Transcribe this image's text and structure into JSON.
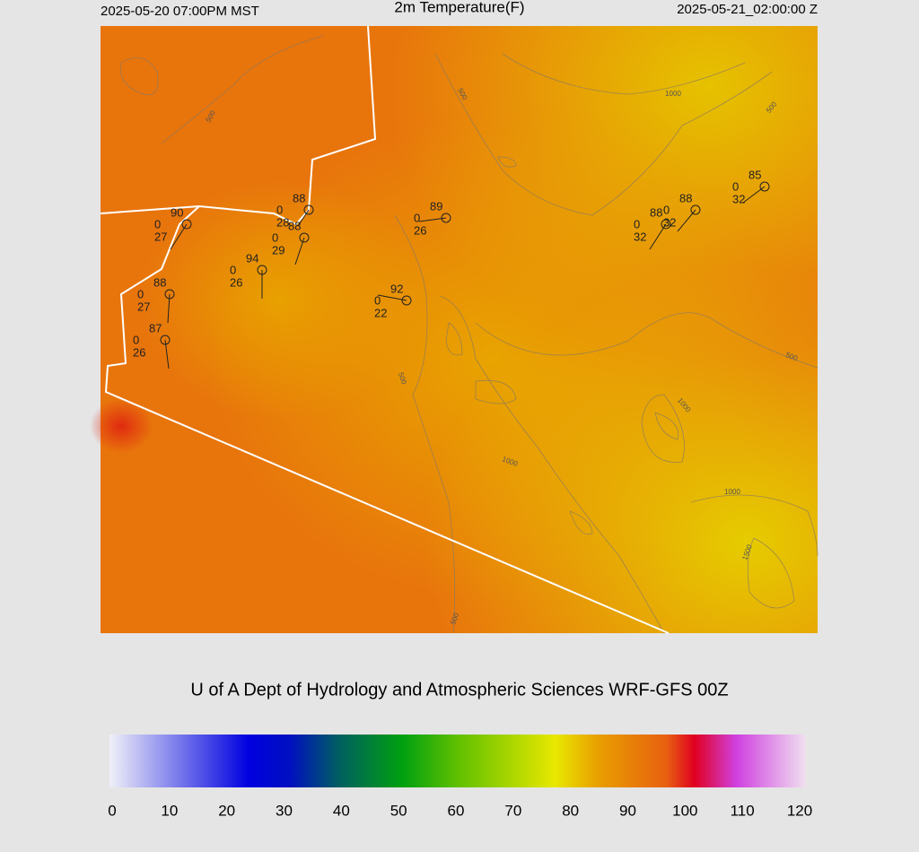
{
  "header": {
    "left": "2025-05-20 07:00PM MST",
    "title": "2m Temperature(F)",
    "right": "2025-05-21_02:00:00 Z"
  },
  "stations": [
    {
      "temp": 90,
      "wind": 0,
      "dew": 27
    },
    {
      "temp": 88,
      "wind": 0,
      "dew": 28
    },
    {
      "temp": 88,
      "wind": 0,
      "dew": 29
    },
    {
      "temp": 94,
      "wind": 0,
      "dew": 26
    },
    {
      "temp": 88,
      "wind": 0,
      "dew": 27
    },
    {
      "temp": 87,
      "wind": 0,
      "dew": 26
    },
    {
      "temp": 89,
      "wind": 0,
      "dew": 26
    },
    {
      "temp": 92,
      "wind": 0,
      "dew": 22
    },
    {
      "temp": 88,
      "wind": 0,
      "dew": 32
    },
    {
      "temp": 88,
      "wind": 0,
      "dew": 32
    },
    {
      "temp": 85,
      "wind": 0,
      "dew": 32
    }
  ],
  "contour_labels": [
    500,
    500,
    1000,
    500,
    500,
    500,
    1000,
    1000,
    1000,
    1500,
    500
  ],
  "credit": "U of A Dept of Hydrology and Atmospheric Sciences WRF-GFS 00Z",
  "colorbar": {
    "ticks": [
      0,
      10,
      20,
      30,
      40,
      50,
      60,
      70,
      80,
      90,
      100,
      110,
      120
    ]
  }
}
